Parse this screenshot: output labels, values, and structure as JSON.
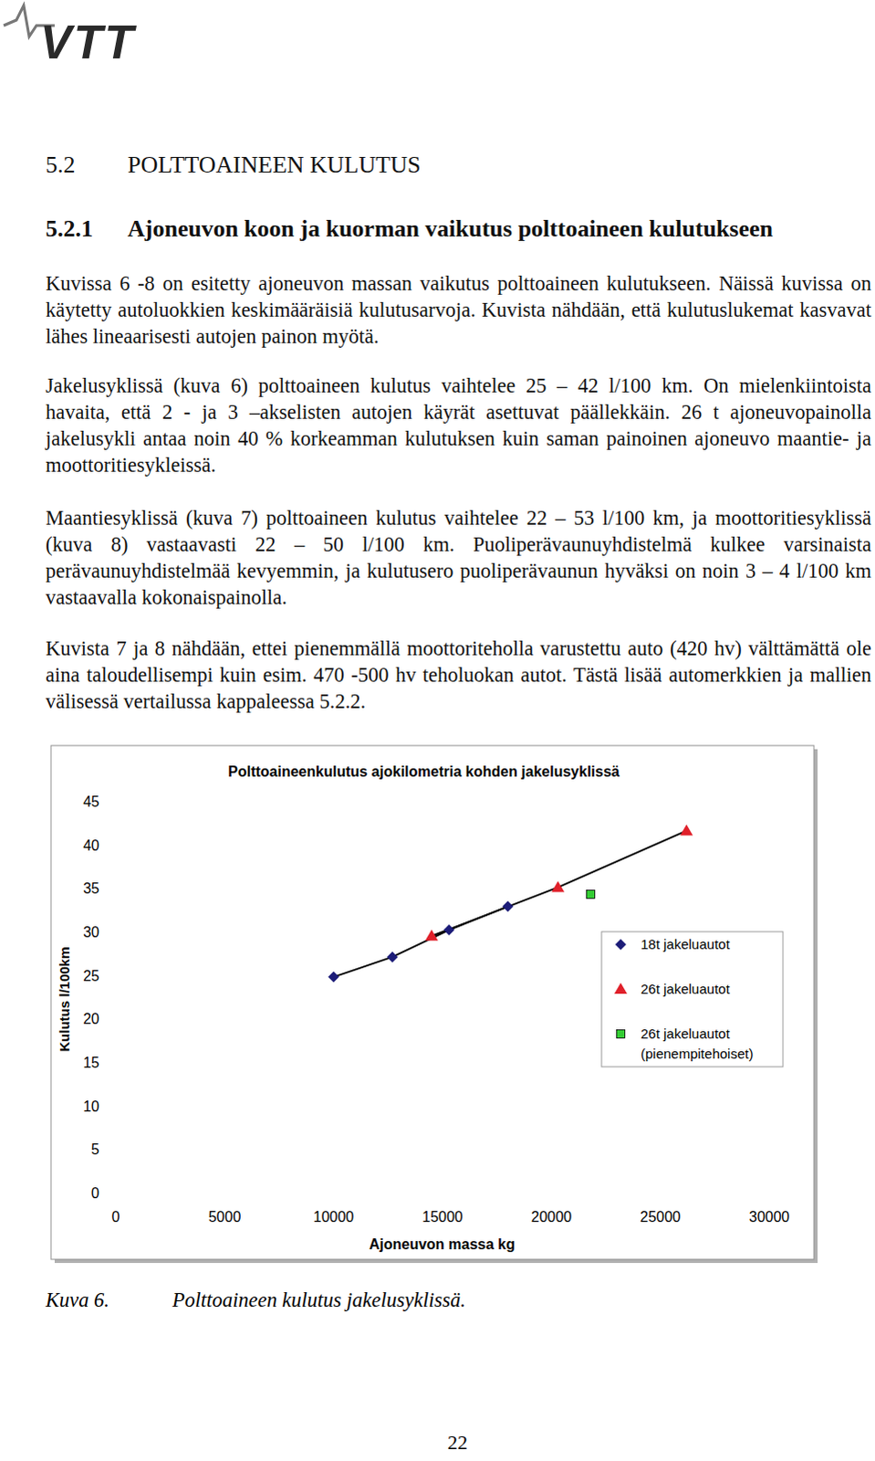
{
  "header": {
    "logo": "VTT"
  },
  "headings": [
    {
      "number": "5.2",
      "title": "POLTTOAINEEN KULUTUS"
    },
    {
      "number": "5.2.1",
      "title": "Ajoneuvon koon ja kuorman vaikutus polttoaineen kulutukseen"
    }
  ],
  "paragraphs": [
    "Kuvissa 6 -8 on esitetty ajoneuvon massan vaikutus polttoaineen kulutukseen. Näissä kuvissa on käytetty autoluokkien keskimääräisiä kulutusarvoja. Kuvista nähdään, että kulutuslukemat kasvavat lähes lineaarisesti autojen painon myötä.",
    "Jakelusyklissä (kuva 6) polttoaineen kulutus vaihtelee 25 – 42 l/100 km. On mielenkiintoista havaita, että 2 - ja 3 –akselisten autojen käyrät asettuvat päällekkäin. 26 t ajoneuvopainolla jakelusykli antaa noin 40 % korkeamman kulutuksen kuin saman painoinen ajoneuvo maantie- ja moottoritiesykleissä.",
    "Maantiesyklissä (kuva 7) polttoaineen kulutus vaihtelee 22 – 53 l/100 km, ja moottoritiesyklissä (kuva 8) vastaavasti 22 – 50 l/100 km. Puoliperävaunuyhdistelmä kulkee varsinaista perävaunuyhdistelmää kevyemmin, ja kulutusero puoliperävaunun hyväksi on noin 3 – 4 l/100 km vastaavalla kokonaispainolla.",
    "Kuvista 7 ja 8 nähdään, ettei pienemmällä moottoriteholla varustettu auto (420 hv) välttämättä ole aina taloudellisempi kuin esim. 470 -500 hv teholuokan autot. Tästä lisää automerkkien ja mallien välisessä vertailussa kappaleessa 5.2.2."
  ],
  "chart_data": {
    "type": "line",
    "title": "Polttoaineenkulutus ajokilometria kohden jakelusyklissä",
    "x_label": "Ajoneuvon massa kg",
    "y_label": "Kulutus l/100km",
    "xlim": [
      0,
      30000
    ],
    "xticks": [
      0,
      5000,
      10000,
      15000,
      20000,
      25000,
      30000
    ],
    "ylim": [
      0,
      45
    ],
    "yticks": [
      0,
      5,
      10,
      15,
      20,
      25,
      30,
      35,
      40,
      45
    ],
    "grid": false,
    "legend": "right",
    "series": [
      {
        "name": "18t jakeluautot",
        "color": "#1c1c78",
        "marker": "diamond",
        "line_style": "solid",
        "x": [
          10000,
          12700,
          15300,
          18000
        ],
        "values": [
          24.8,
          27.1,
          30.2,
          32.9
        ]
      },
      {
        "name": "26t jakeluautot",
        "color": "#e0202a",
        "marker": "triangle",
        "line_style": "solid",
        "x": [
          14500,
          20300,
          26200
        ],
        "values": [
          29.5,
          35.1,
          41.6
        ]
      },
      {
        "name": "26t jakeluautot (pienempitehoiset)",
        "color": "#33cc33",
        "marker": "square",
        "line_style": "none",
        "x": [
          21800
        ],
        "values": [
          34.3
        ]
      }
    ]
  },
  "caption": {
    "label": "Kuva 6.",
    "text": "Polttoaineen kulutus jakelusyklissä."
  },
  "page_number": 22
}
